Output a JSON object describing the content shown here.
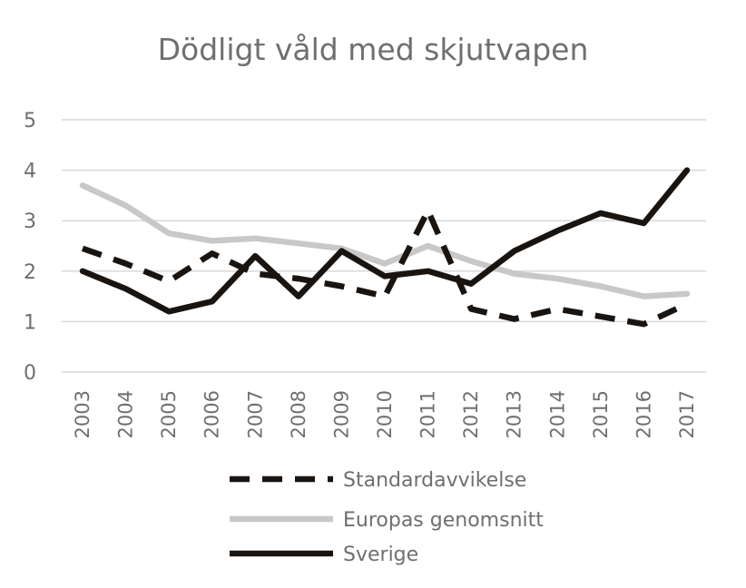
{
  "chart_data": {
    "type": "line",
    "title": "Dödligt våld med skjutvapen",
    "xlabel": "",
    "ylabel": "",
    "ylim": [
      0,
      5
    ],
    "yticks": [
      "0",
      "1",
      "2",
      "3",
      "4",
      "5"
    ],
    "grid": true,
    "legend_position": "bottom",
    "categories": [
      "2003",
      "2004",
      "2005",
      "2006",
      "2007",
      "2008",
      "2009",
      "2010",
      "2011",
      "2012",
      "2013",
      "2014",
      "2015",
      "2016",
      "2017"
    ],
    "series": [
      {
        "name": "Standardavvikelse",
        "color": "#1a1410",
        "dash": "dashed",
        "values": [
          2.45,
          2.15,
          1.8,
          2.35,
          1.95,
          1.85,
          1.7,
          1.5,
          3.2,
          1.25,
          1.05,
          1.25,
          1.1,
          0.95,
          1.35
        ]
      },
      {
        "name": "Europas genomsnitt",
        "color": "#c8c8c8",
        "dash": "solid",
        "values": [
          3.7,
          3.3,
          2.75,
          2.6,
          2.65,
          2.55,
          2.45,
          2.15,
          2.5,
          2.2,
          1.95,
          1.85,
          1.7,
          1.5,
          1.55
        ]
      },
      {
        "name": "Sverige",
        "color": "#1a1410",
        "dash": "solid",
        "values": [
          2.0,
          1.65,
          1.2,
          1.4,
          2.3,
          1.5,
          2.4,
          1.9,
          2.0,
          1.75,
          2.4,
          2.8,
          3.15,
          2.95,
          4.0
        ]
      }
    ]
  }
}
